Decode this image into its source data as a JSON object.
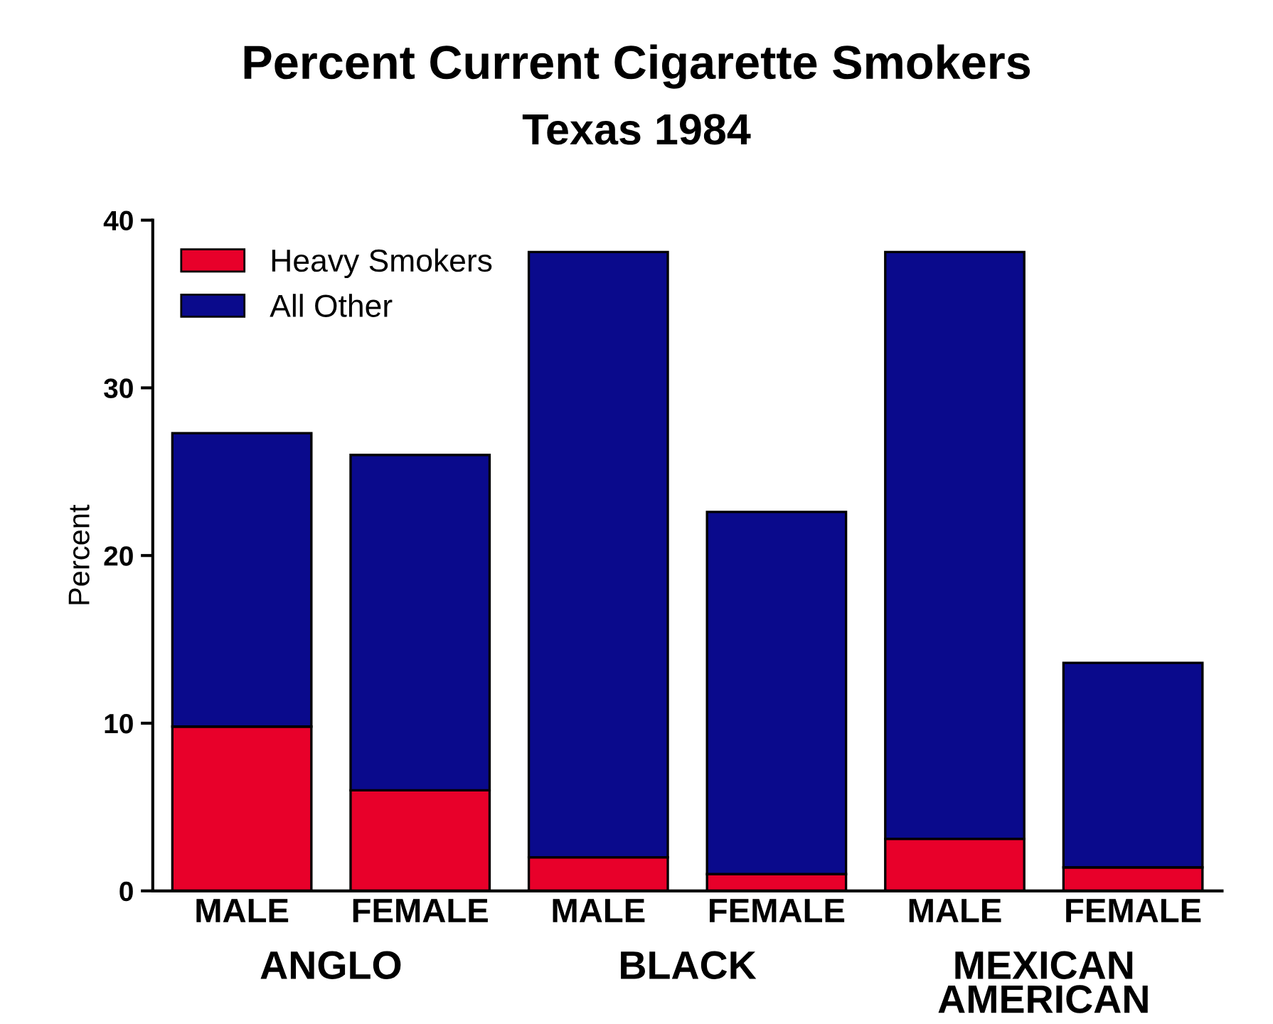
{
  "chart_data": {
    "type": "bar",
    "title": "Percent Current Cigarette Smokers",
    "subtitle": "Texas 1984",
    "ylabel": "Percent",
    "categories": [
      "MALE",
      "FEMALE",
      "MALE",
      "FEMALE",
      "MALE",
      "FEMALE"
    ],
    "series": [
      {
        "name": "Heavy Smokers",
        "color": "#e8002a",
        "values": [
          9.8,
          6.0,
          2.0,
          1.0,
          3.1,
          1.4
        ]
      },
      {
        "name": "All Other",
        "color": "#0a0a8c",
        "values": [
          17.5,
          20.0,
          36.1,
          21.6,
          35.0,
          12.2
        ]
      }
    ],
    "stacked": true,
    "ylim": [
      0,
      40
    ],
    "yticks": [
      0,
      10,
      20,
      30,
      40
    ],
    "grid": false,
    "legend": "top left",
    "annotations": [
      "ANGLO",
      "BLACK",
      "MEXICAN\nAMERICAN"
    ]
  }
}
